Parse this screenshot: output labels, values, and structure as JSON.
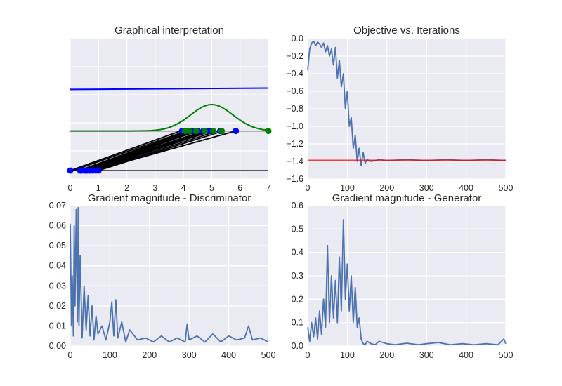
{
  "chart_data": [
    {
      "id": "graphical",
      "type": "line",
      "title": "Graphical interpretation",
      "xlim": [
        0,
        7
      ],
      "xticks": [
        "0",
        "1",
        "2",
        "3",
        "4",
        "5",
        "6",
        "7"
      ],
      "grid": true,
      "series": [
        {
          "role": "discriminator-output",
          "color": "#0000ff",
          "x": [
            0,
            7
          ],
          "y": [
            0.615,
            0.625
          ]
        },
        {
          "role": "generated-density",
          "color": "#008000",
          "mean": 5.0,
          "std": 0.75,
          "baseline": 0.3,
          "peak": 0.5
        },
        {
          "role": "baseline-top",
          "color": "#000000",
          "x": [
            0,
            7
          ],
          "y": [
            0.3,
            0.3
          ]
        },
        {
          "role": "baseline-bottom",
          "color": "#000000",
          "x": [
            0,
            7
          ],
          "y": [
            0.0,
            0.0
          ]
        },
        {
          "role": "mapping-lines",
          "color": "#000000",
          "pairs": [
            [
              0.0,
              3.9
            ],
            [
              0.1,
              4.1
            ],
            [
              0.3,
              4.2
            ],
            [
              0.35,
              4.3
            ],
            [
              0.4,
              4.4
            ],
            [
              0.5,
              4.5
            ],
            [
              0.55,
              4.7
            ],
            [
              0.6,
              4.8
            ],
            [
              0.7,
              4.9
            ],
            [
              0.8,
              5.0
            ],
            [
              0.9,
              5.2
            ],
            [
              1.0,
              5.4
            ],
            [
              0.85,
              5.85
            ]
          ]
        }
      ],
      "points_bottom": {
        "color": "#0000ff",
        "x": [
          0.0,
          0.35,
          0.4,
          0.5,
          0.55,
          0.6,
          0.7,
          0.8,
          0.9,
          1.0
        ]
      },
      "points_top_blue": {
        "color": "#0000ff",
        "x": [
          3.95,
          4.1,
          4.3,
          4.5,
          4.7,
          4.9,
          5.0,
          5.3,
          5.85
        ]
      },
      "points_top_green": {
        "color": "#008000",
        "x": [
          4.05,
          4.2,
          4.45,
          4.75,
          5.05,
          5.35,
          7.0
        ]
      }
    },
    {
      "id": "objective",
      "type": "line",
      "title": "Objective vs. Iterations",
      "xlim": [
        0,
        500
      ],
      "ylim": [
        -1.6,
        0.0
      ],
      "xticks": [
        "0",
        "100",
        "200",
        "300",
        "400",
        "500"
      ],
      "yticks": [
        "0.0",
        "−0.2",
        "−0.4",
        "−0.6",
        "−0.8",
        "−1.0",
        "−1.2",
        "−1.4",
        "−1.6"
      ],
      "grid": true,
      "series": [
        {
          "color": "#4c72b0",
          "x": [
            0,
            5,
            10,
            15,
            20,
            25,
            30,
            35,
            40,
            45,
            50,
            55,
            60,
            65,
            70,
            75,
            80,
            85,
            90,
            95,
            100,
            105,
            110,
            115,
            120,
            125,
            130,
            135,
            140,
            145,
            150,
            160,
            180,
            200,
            250,
            300,
            350,
            400,
            450,
            500
          ],
          "y": [
            -0.36,
            -0.12,
            -0.05,
            -0.03,
            -0.08,
            -0.04,
            -0.06,
            -0.1,
            -0.05,
            -0.15,
            -0.08,
            -0.2,
            -0.12,
            -0.3,
            -0.1,
            -0.45,
            -0.25,
            -0.55,
            -0.4,
            -0.8,
            -0.6,
            -1.0,
            -0.9,
            -1.25,
            -1.1,
            -1.4,
            -1.25,
            -1.45,
            -1.3,
            -1.42,
            -1.38,
            -1.4,
            -1.38,
            -1.39,
            -1.38,
            -1.39,
            -1.38,
            -1.39,
            -1.38,
            -1.39
          ]
        },
        {
          "role": "reference-line",
          "color": "#ff0000",
          "x": [
            0,
            500
          ],
          "y": [
            -1.386,
            -1.386
          ]
        }
      ]
    },
    {
      "id": "grad-disc",
      "type": "line",
      "title": "Gradient magnitude - Discriminator",
      "xlim": [
        0,
        500
      ],
      "ylim": [
        0.0,
        0.07
      ],
      "xticks": [
        "0",
        "100",
        "200",
        "300",
        "400",
        "500"
      ],
      "yticks": [
        "0.07",
        "0.06",
        "0.05",
        "0.04",
        "0.03",
        "0.02",
        "0.01",
        "0.00"
      ],
      "grid": true,
      "series": [
        {
          "color": "#4c72b0",
          "x": [
            0,
            3,
            5,
            8,
            10,
            12,
            15,
            18,
            20,
            22,
            25,
            30,
            35,
            40,
            45,
            50,
            55,
            60,
            65,
            70,
            80,
            90,
            100,
            105,
            110,
            115,
            120,
            130,
            140,
            150,
            170,
            190,
            210,
            230,
            250,
            270,
            290,
            295,
            300,
            320,
            340,
            360,
            380,
            400,
            420,
            440,
            450,
            460,
            480,
            500
          ],
          "y": [
            0.061,
            0.01,
            0.035,
            0.005,
            0.06,
            0.02,
            0.068,
            0.012,
            0.069,
            0.01,
            0.045,
            0.004,
            0.03,
            0.008,
            0.025,
            0.005,
            0.02,
            0.003,
            0.015,
            0.006,
            0.01,
            0.003,
            0.012,
            0.022,
            0.005,
            0.023,
            0.004,
            0.012,
            0.002,
            0.008,
            0.003,
            0.004,
            0.002,
            0.005,
            0.002,
            0.004,
            0.002,
            0.011,
            0.003,
            0.005,
            0.002,
            0.006,
            0.002,
            0.005,
            0.003,
            0.004,
            0.01,
            0.003,
            0.004,
            0.002
          ]
        }
      ]
    },
    {
      "id": "grad-gen",
      "type": "line",
      "title": "Gradient magnitude - Generator",
      "xlim": [
        0,
        500
      ],
      "ylim": [
        0.0,
        0.6
      ],
      "xticks": [
        "0",
        "100",
        "200",
        "300",
        "400",
        "500"
      ],
      "yticks": [
        "0.6",
        "0.5",
        "0.4",
        "0.3",
        "0.2",
        "0.1",
        "0.0"
      ],
      "grid": true,
      "series": [
        {
          "color": "#4c72b0",
          "x": [
            0,
            5,
            10,
            15,
            20,
            25,
            30,
            35,
            40,
            45,
            50,
            55,
            60,
            65,
            70,
            75,
            80,
            85,
            90,
            95,
            100,
            105,
            110,
            115,
            120,
            125,
            130,
            135,
            140,
            145,
            150,
            160,
            170,
            180,
            200,
            220,
            250,
            280,
            300,
            330,
            360,
            390,
            420,
            450,
            480,
            495,
            500
          ],
          "y": [
            0.08,
            0.02,
            0.1,
            0.04,
            0.12,
            0.03,
            0.15,
            0.05,
            0.2,
            0.08,
            0.43,
            0.1,
            0.3,
            0.12,
            0.28,
            0.1,
            0.38,
            0.15,
            0.54,
            0.2,
            0.35,
            0.15,
            0.3,
            0.1,
            0.25,
            0.08,
            0.12,
            0.03,
            0.01,
            0.005,
            0.02,
            0.01,
            0.005,
            0.02,
            0.01,
            0.005,
            0.012,
            0.005,
            0.01,
            0.015,
            0.005,
            0.01,
            0.005,
            0.01,
            0.005,
            0.03,
            0.01
          ]
        }
      ]
    }
  ]
}
